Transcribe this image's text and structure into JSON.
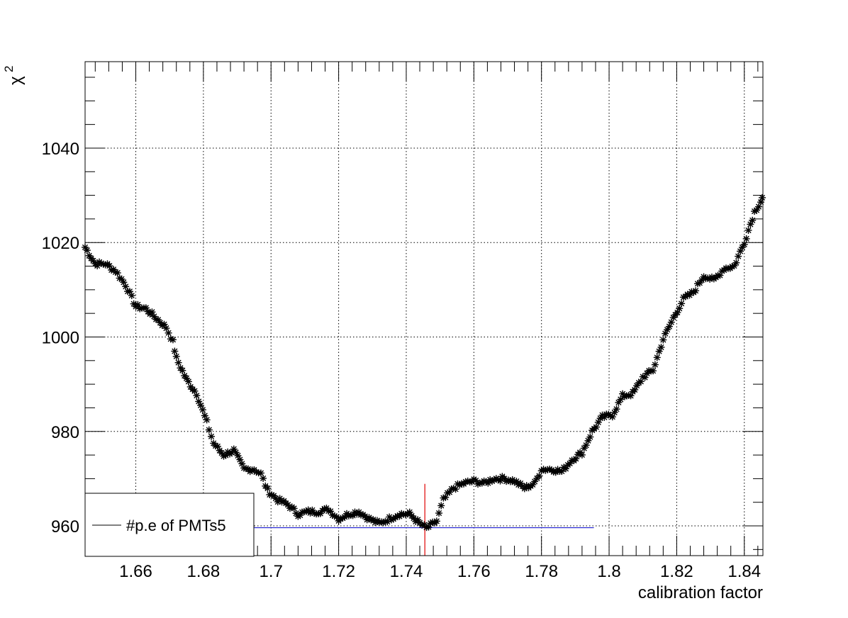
{
  "chart_data": {
    "type": "scatter",
    "title": "",
    "xlabel": "calibration factor",
    "ylabel_symbol": "χ",
    "ylabel_superscript": "2",
    "xlim": [
      1.645,
      1.8455
    ],
    "ylim": [
      953.7,
      1058.3
    ],
    "x_ticks": [
      1.66,
      1.68,
      1.7,
      1.72,
      1.74,
      1.76,
      1.78,
      1.8,
      1.82,
      1.84
    ],
    "x_tick_labels": [
      "1.66",
      "1.68",
      "1.7",
      "1.72",
      "1.74",
      "1.76",
      "1.78",
      "1.8",
      "1.82",
      "1.84"
    ],
    "y_ticks": [
      960,
      980,
      1000,
      1020,
      1040
    ],
    "y_tick_labels": [
      "960",
      "980",
      "1000",
      "1020",
      "1040"
    ],
    "grid": true,
    "legend": {
      "placement": "bottom-left",
      "entries": [
        "#p.e of PMTs5"
      ]
    },
    "marker_color": "#000000",
    "series": [
      {
        "name": "#p.e of PMTs5",
        "points": [
          [
            1.645,
            1019.0
          ],
          [
            1.648,
            1015.5
          ],
          [
            1.651,
            1015.5
          ],
          [
            1.654,
            1014.0
          ],
          [
            1.657,
            1011.0
          ],
          [
            1.66,
            1006.5
          ],
          [
            1.663,
            1006.0
          ],
          [
            1.666,
            1004.0
          ],
          [
            1.669,
            1002.0
          ],
          [
            1.671,
            999.0
          ],
          [
            1.672,
            995.5
          ],
          [
            1.675,
            991.0
          ],
          [
            1.678,
            988.0
          ],
          [
            1.681,
            982.0
          ],
          [
            1.683,
            977.5
          ],
          [
            1.686,
            975.0
          ],
          [
            1.689,
            976.0
          ],
          [
            1.692,
            972.0
          ],
          [
            1.695,
            972.0
          ],
          [
            1.697,
            971.0
          ],
          [
            1.699,
            967.5
          ],
          [
            1.702,
            965.5
          ],
          [
            1.705,
            964.5
          ],
          [
            1.708,
            962.5
          ],
          [
            1.711,
            963.0
          ],
          [
            1.714,
            963.0
          ],
          [
            1.717,
            963.5
          ],
          [
            1.72,
            961.5
          ],
          [
            1.723,
            962.5
          ],
          [
            1.726,
            963.0
          ],
          [
            1.729,
            961.5
          ],
          [
            1.732,
            960.5
          ],
          [
            1.735,
            961.5
          ],
          [
            1.738,
            962.5
          ],
          [
            1.741,
            962.5
          ],
          [
            1.744,
            960.5
          ],
          [
            1.746,
            959.5
          ],
          [
            1.749,
            961.0
          ],
          [
            1.751,
            965.5
          ],
          [
            1.754,
            968.0
          ],
          [
            1.757,
            969.0
          ],
          [
            1.76,
            969.5
          ],
          [
            1.763,
            969.0
          ],
          [
            1.766,
            970.0
          ],
          [
            1.769,
            970.0
          ],
          [
            1.772,
            969.5
          ],
          [
            1.775,
            968.0
          ],
          [
            1.778,
            969.0
          ],
          [
            1.78,
            972.0
          ],
          [
            1.783,
            972.0
          ],
          [
            1.786,
            971.5
          ],
          [
            1.789,
            974.0
          ],
          [
            1.792,
            975.5
          ],
          [
            1.795,
            980.0
          ],
          [
            1.798,
            983.0
          ],
          [
            1.801,
            983.5
          ],
          [
            1.804,
            987.5
          ],
          [
            1.807,
            988.0
          ],
          [
            1.81,
            991.5
          ],
          [
            1.813,
            993.0
          ],
          [
            1.816,
            999.5
          ],
          [
            1.819,
            1004.0
          ],
          [
            1.822,
            1008.0
          ],
          [
            1.825,
            1009.5
          ],
          [
            1.828,
            1013.0
          ],
          [
            1.831,
            1012.0
          ],
          [
            1.834,
            1014.5
          ],
          [
            1.837,
            1015.0
          ],
          [
            1.84,
            1020.0
          ],
          [
            1.843,
            1026.5
          ],
          [
            1.8455,
            1029.5
          ]
        ]
      }
    ],
    "annotations": {
      "min_marker_x": 1.7455,
      "min_marker_ylim": [
        953.7,
        968.9
      ],
      "color_min_marker": "#e00000",
      "threshold_line_y": 959.6,
      "threshold_line_xlim": [
        1.645,
        1.7955
      ],
      "color_threshold_line": "#0000cc"
    }
  }
}
